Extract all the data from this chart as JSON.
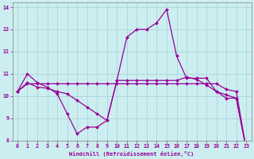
{
  "xlabel": "Windchill (Refroidissement éolien,°C)",
  "bg_color": "#cceef0",
  "grid_color": "#aad4d8",
  "line_color": "#990099",
  "xlim": [
    -0.5,
    23.5
  ],
  "ylim": [
    8,
    14.2
  ],
  "xticks": [
    0,
    1,
    2,
    3,
    4,
    5,
    6,
    7,
    8,
    9,
    10,
    11,
    12,
    13,
    14,
    15,
    16,
    17,
    18,
    19,
    20,
    21,
    22,
    23
  ],
  "yticks": [
    8,
    9,
    10,
    11,
    12,
    13,
    14
  ],
  "line1_x": [
    0,
    1,
    2,
    3,
    4,
    5,
    6,
    7,
    8,
    9,
    10,
    11,
    12,
    13,
    14,
    15,
    16,
    17,
    18,
    19,
    20,
    21,
    22,
    23
  ],
  "line1_y": [
    10.2,
    11.0,
    10.6,
    10.4,
    10.1,
    9.2,
    8.3,
    8.6,
    8.6,
    8.9,
    10.7,
    12.65,
    13.0,
    13.0,
    13.3,
    13.9,
    11.8,
    10.8,
    10.8,
    10.8,
    10.2,
    9.9,
    9.9,
    7.6
  ],
  "line2_x": [
    0,
    1,
    2,
    3,
    4,
    5,
    6,
    7,
    8,
    9,
    10,
    11,
    12,
    13,
    14,
    15,
    16,
    17,
    18,
    19,
    20,
    21,
    22,
    23
  ],
  "line2_y": [
    10.2,
    10.6,
    10.4,
    10.35,
    10.2,
    10.1,
    9.8,
    9.5,
    9.2,
    8.9,
    10.7,
    10.7,
    10.7,
    10.7,
    10.7,
    10.7,
    10.7,
    10.85,
    10.75,
    10.5,
    10.2,
    10.05,
    9.9,
    7.6
  ],
  "line3_x": [
    0,
    1,
    2,
    3,
    4,
    5,
    6,
    7,
    8,
    9,
    10,
    11,
    12,
    13,
    14,
    15,
    16,
    17,
    18,
    19,
    20,
    21,
    22,
    23
  ],
  "line3_y": [
    10.2,
    10.55,
    10.55,
    10.55,
    10.55,
    10.55,
    10.55,
    10.55,
    10.55,
    10.55,
    10.55,
    10.55,
    10.55,
    10.55,
    10.55,
    10.55,
    10.55,
    10.55,
    10.55,
    10.55,
    10.55,
    10.3,
    10.2,
    7.6
  ],
  "markersize": 2.0,
  "linewidth": 0.9
}
